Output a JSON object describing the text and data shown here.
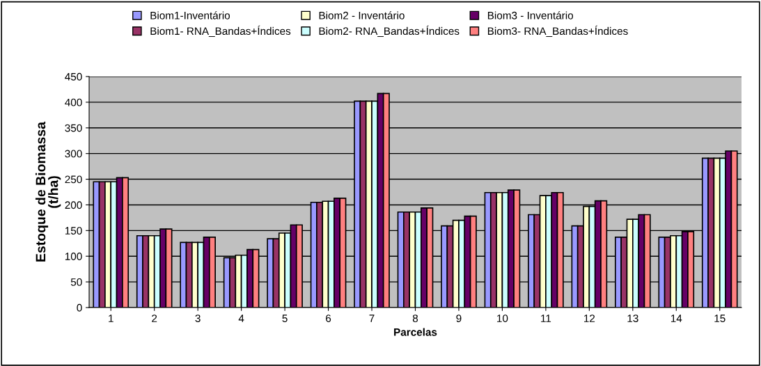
{
  "chart_data": {
    "type": "bar",
    "xlabel": "Parcelas",
    "ylabel": "Estoque de Biomassa\n(t/ha)",
    "categories": [
      "1",
      "2",
      "3",
      "4",
      "5",
      "6",
      "7",
      "8",
      "9",
      "10",
      "11",
      "12",
      "13",
      "14",
      "15"
    ],
    "series": [
      {
        "name": "Biom1-Inventário",
        "color": "#9999ff",
        "values": [
          245,
          140,
          127,
          97,
          134,
          205,
          402,
          186,
          159,
          224,
          181,
          159,
          137,
          137,
          291
        ]
      },
      {
        "name": "Biom1- RNA_Bandas+Índices",
        "color": "#993366",
        "values": [
          245,
          140,
          127,
          97,
          134,
          205,
          402,
          186,
          159,
          224,
          181,
          159,
          137,
          137,
          291
        ]
      },
      {
        "name": "Biom2 - Inventário",
        "color": "#ffffcc",
        "values": [
          245,
          140,
          127,
          102,
          145,
          207,
          402,
          186,
          170,
          224,
          218,
          197,
          172,
          140,
          291
        ]
      },
      {
        "name": "Biom2- RNA_Bandas+Índices",
        "color": "#ccffff",
        "values": [
          245,
          140,
          127,
          102,
          145,
          207,
          402,
          186,
          170,
          224,
          218,
          197,
          172,
          140,
          291
        ]
      },
      {
        "name": "Biom3 - Inventário",
        "color": "#660066",
        "values": [
          253,
          153,
          137,
          113,
          161,
          213,
          417,
          194,
          178,
          229,
          224,
          208,
          181,
          148,
          305
        ]
      },
      {
        "name": "Biom3- RNA_Bandas+Índices",
        "color": "#ff8080",
        "values": [
          253,
          153,
          137,
          113,
          161,
          213,
          417,
          194,
          178,
          229,
          224,
          208,
          181,
          148,
          305
        ]
      }
    ],
    "ylim": [
      0,
      450
    ],
    "yticks": [
      0,
      50,
      100,
      150,
      200,
      250,
      300,
      350,
      400,
      450
    ],
    "grid": "y",
    "legend": "top"
  }
}
